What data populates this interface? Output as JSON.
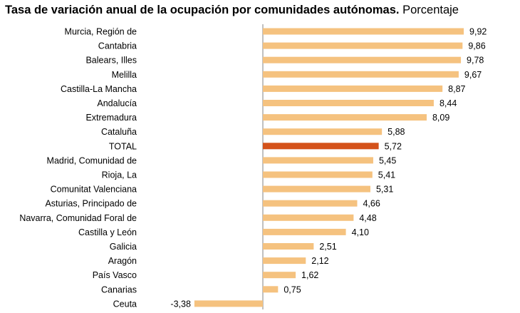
{
  "chart_data": {
    "type": "bar",
    "orientation": "horizontal",
    "title": "Tasa de variación anual de la ocupación por comunidades autónomas.",
    "subtitle": "Porcentaje",
    "categories": [
      "Murcia, Región de",
      "Cantabria",
      "Balears, Illes",
      "Melilla",
      "Castilla-La Mancha",
      "Andalucía",
      "Extremadura",
      "Cataluña",
      "TOTAL",
      "Madrid, Comunidad de",
      "Rioja, La",
      "Comunitat Valenciana",
      "Asturias, Principado de",
      "Navarra, Comunidad Foral de",
      "Castilla y León",
      "Galicia",
      "Aragón",
      "País Vasco",
      "Canarias",
      "Ceuta"
    ],
    "values": [
      9.92,
      9.86,
      9.78,
      9.67,
      8.87,
      8.44,
      8.09,
      5.88,
      5.72,
      5.45,
      5.41,
      5.31,
      4.66,
      4.48,
      4.1,
      2.51,
      2.12,
      1.62,
      0.75,
      -3.38
    ],
    "value_labels": [
      "9,92",
      "9,86",
      "9,78",
      "9,67",
      "8,87",
      "8,44",
      "8,09",
      "5,88",
      "5,72",
      "5,45",
      "5,41",
      "5,31",
      "4,66",
      "4,48",
      "4,10",
      "2,51",
      "2,12",
      "1,62",
      "0,75",
      "-3,38"
    ],
    "highlight": "TOTAL",
    "colors": {
      "bar": "#F5C27F",
      "highlight": "#D4521A",
      "axis": "#808080"
    },
    "grid": false,
    "legend": "none"
  }
}
